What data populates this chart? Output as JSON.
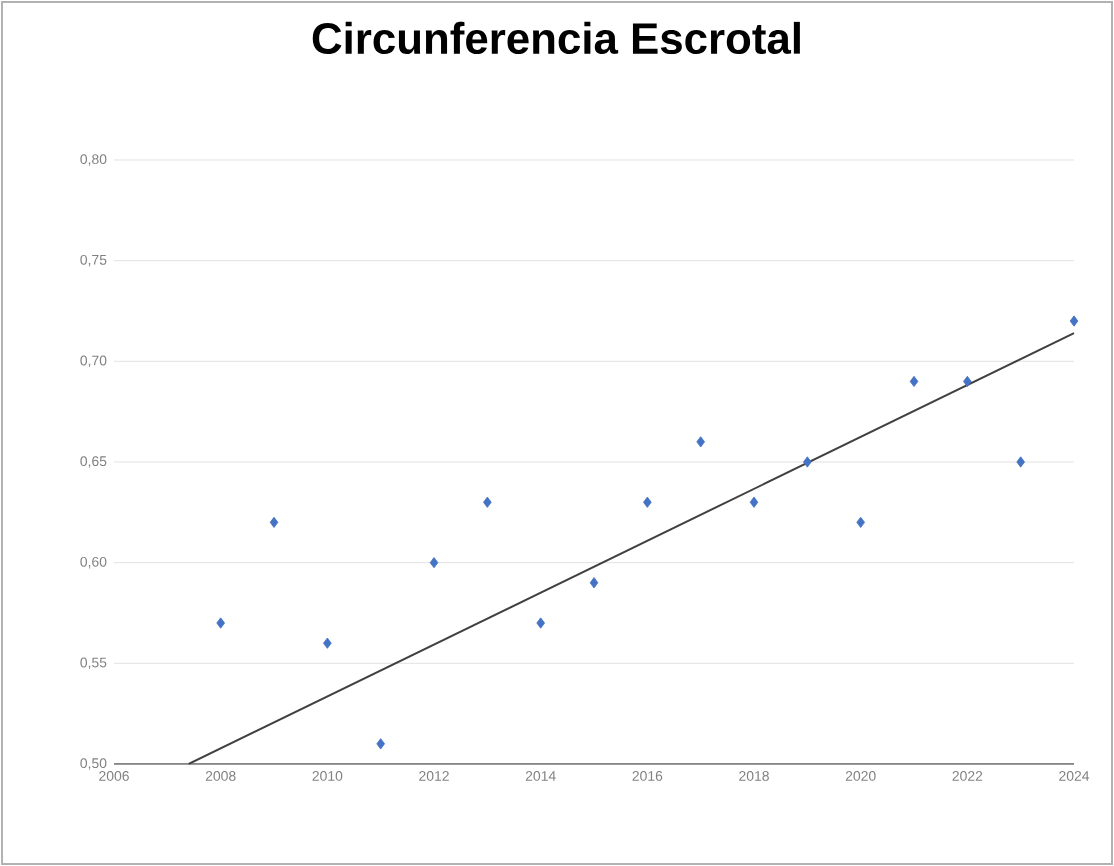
{
  "chart_data": {
    "type": "scatter",
    "title": "Circunferencia Escrotal",
    "xlim": [
      2006,
      2024
    ],
    "xticks": [
      2006,
      2008,
      2010,
      2012,
      2014,
      2016,
      2018,
      2020,
      2022,
      2024
    ],
    "ylim": [
      0.5,
      0.8
    ],
    "yticks": [
      {
        "value": 0.5,
        "label": "0,50"
      },
      {
        "value": 0.55,
        "label": "0,55"
      },
      {
        "value": 0.6,
        "label": "0,60"
      },
      {
        "value": 0.65,
        "label": "0,65"
      },
      {
        "value": 0.7,
        "label": "0,70"
      },
      {
        "value": 0.75,
        "label": "0,75"
      },
      {
        "value": 0.8,
        "label": "0,80"
      }
    ],
    "grid": "y",
    "series": [
      {
        "marker": "diamond",
        "color": "#4472c4",
        "x": [
          2008,
          2009,
          2010,
          2011,
          2012,
          2013,
          2014,
          2015,
          2016,
          2017,
          2018,
          2019,
          2020,
          2021,
          2022,
          2023,
          2024
        ],
        "values": [
          0.57,
          0.62,
          0.56,
          0.51,
          0.6,
          0.63,
          0.57,
          0.59,
          0.63,
          0.66,
          0.63,
          0.65,
          0.62,
          0.69,
          0.69,
          0.65,
          0.72
        ]
      },
      {
        "type": "line",
        "marker": "none",
        "line_style": "solid",
        "color": "#404040",
        "x": [
          2007.4,
          2024
        ],
        "values": [
          0.5,
          0.714
        ]
      }
    ]
  }
}
